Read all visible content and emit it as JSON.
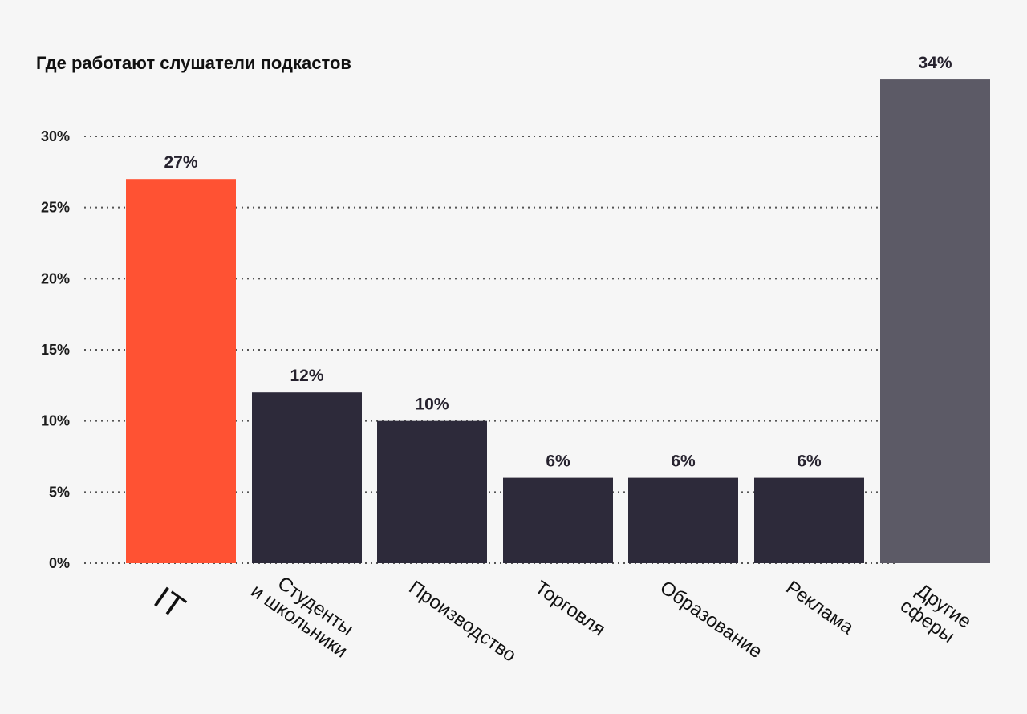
{
  "chart_data": {
    "type": "bar",
    "title": "Где работают слушатели подкастов",
    "categories": [
      [
        "IT"
      ],
      [
        "Студенты",
        "и школьники"
      ],
      [
        "Производство"
      ],
      [
        "Торговля"
      ],
      [
        "Образование"
      ],
      [
        "Реклама"
      ],
      [
        "Другие",
        "сферы"
      ]
    ],
    "values": [
      27,
      12,
      10,
      6,
      6,
      6,
      34
    ],
    "value_labels": [
      "27%",
      "12%",
      "10%",
      "6%",
      "6%",
      "6%",
      "34%"
    ],
    "bar_colors": [
      "#ff5233",
      "#2d2a3a",
      "#2d2a3a",
      "#2d2a3a",
      "#2d2a3a",
      "#2d2a3a",
      "#5c5a66"
    ],
    "yticks": [
      0,
      5,
      10,
      15,
      20,
      25,
      30
    ],
    "ytick_labels": [
      "0%",
      "5%",
      "10%",
      "15%",
      "20%",
      "25%",
      "30%"
    ],
    "ylim": [
      0,
      35
    ],
    "grid": true,
    "xlabel": "",
    "ylabel": ""
  }
}
